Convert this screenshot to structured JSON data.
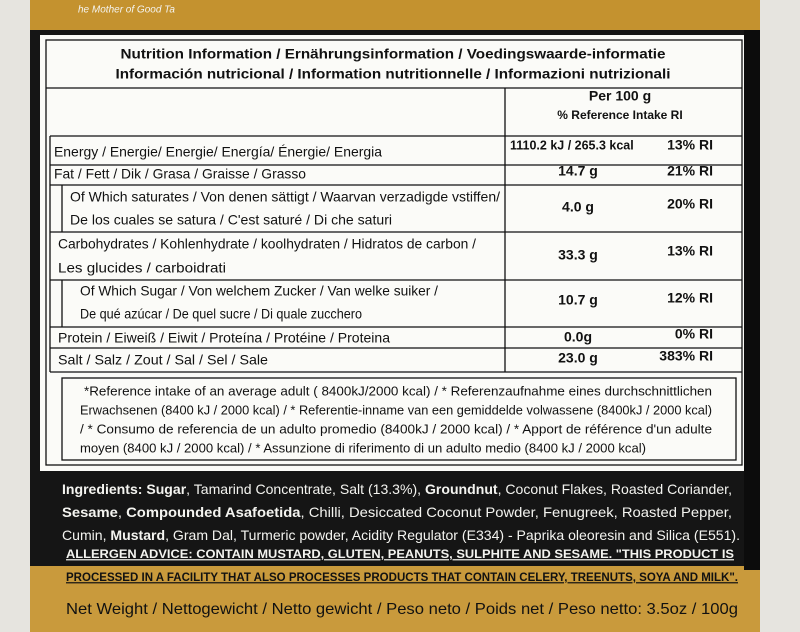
{
  "brand": "he Mother of Good Ta",
  "table": {
    "title": [
      "Nutrition Information / Ernährungsinformation / Voedingswaarde-informatie",
      "Información nutricional / Information nutritionnelle / Informazioni nutrizionali"
    ],
    "header": [
      "Per 100 g",
      "% Reference Intake RI"
    ],
    "rows": [
      {
        "label": [
          "Energy / Energie/ Energie/ Energía/ Énergie/ Energia"
        ],
        "amount": "1110.2 kJ / 265.3 kcal",
        "ri": "13% RI"
      },
      {
        "label": [
          "Fat / Fett / Dik / Grasa / Graisse / Grasso"
        ],
        "amount": "14.7 g",
        "ri": "21% RI"
      },
      {
        "label": [
          "Of Which saturates / Von denen sättigt / Waarvan verzadigde vstiffen/",
          "De los cuales se satura / C'est saturé / Di che saturi"
        ],
        "amount": "4.0 g",
        "ri": "20% RI"
      },
      {
        "label": [
          "Carbohydrates / Kohlenhydrate / koolhydraten / Hidratos de carbon /",
          "Les glucides / carboidrati"
        ],
        "amount": "33.3 g",
        "ri": "13% RI"
      },
      {
        "label": [
          "Of Which Sugar / Von welchem Zucker / Van welke suiker /",
          "De qué azúcar / De quel sucre / Di quale zucchero"
        ],
        "amount": "10.7 g",
        "ri": "12% RI"
      },
      {
        "label": [
          "Protein / Eiweiß / Eiwit / Proteína / Protéine / Proteina"
        ],
        "amount": "0.0g",
        "ri": "0% RI"
      },
      {
        "label": [
          "Salt / Salz / Zout / Sal / Sel / Sale"
        ],
        "amount": "23.0 g",
        "ri": "383% RI"
      }
    ],
    "footnote": [
      "*Reference intake  of  an average adult   ( 8400kJ/2000 kcal) / * Referenzaufnahme eines durchschnittlichen",
      "Erwachsenen (8400 kJ / 2000 kcal) / * Referentie-inname van een gemiddelde volwassene (8400kJ / 2000 kcal)",
      "/ * Consumo de referencia de un adulto promedio (8400kJ / 2000 kcal) / * Apport de référence d'un adulte",
      "moyen (8400 kJ / 2000 kcal) / * Assunzione di riferimento di un adulto medio (8400 kJ / 2000 kcal)"
    ]
  },
  "ingredients": [
    [
      "Ingredients: Sugar",
      ", Tamarind Concentrate, Salt (13.3%), ",
      "Groundnut",
      ", Coconut Flakes, Roasted Coriander,"
    ],
    [
      "Sesame",
      ", ",
      "Compounded Asafoetida",
      ", Chilli, Desiccated Coconut Powder, Fenugreek, Roasted Pepper,"
    ],
    [
      "Cumin, ",
      "Mustard",
      ", Gram Dal, Turmeric powder, Acidity Regulator (E334) - Paprika oleoresin and Silica (E551)."
    ]
  ],
  "allergen": [
    "ALLERGEN ADVICE: CONTAIN  MUSTARD, GLUTEN, PEANUTS, SULPHITE AND SESAME. \"THIS PRODUCT IS",
    "PROCESSED IN A FACILITY THAT ALSO PROCESSES PRODUCTS THAT CONTAIN CELERY, TREENUTS, SOYA AND MILK\"."
  ],
  "net_weight": "Net Weight / Nettogewicht / Netto gewicht / Peso neto / Poids net / Peso netto: 3.5oz / 100g"
}
